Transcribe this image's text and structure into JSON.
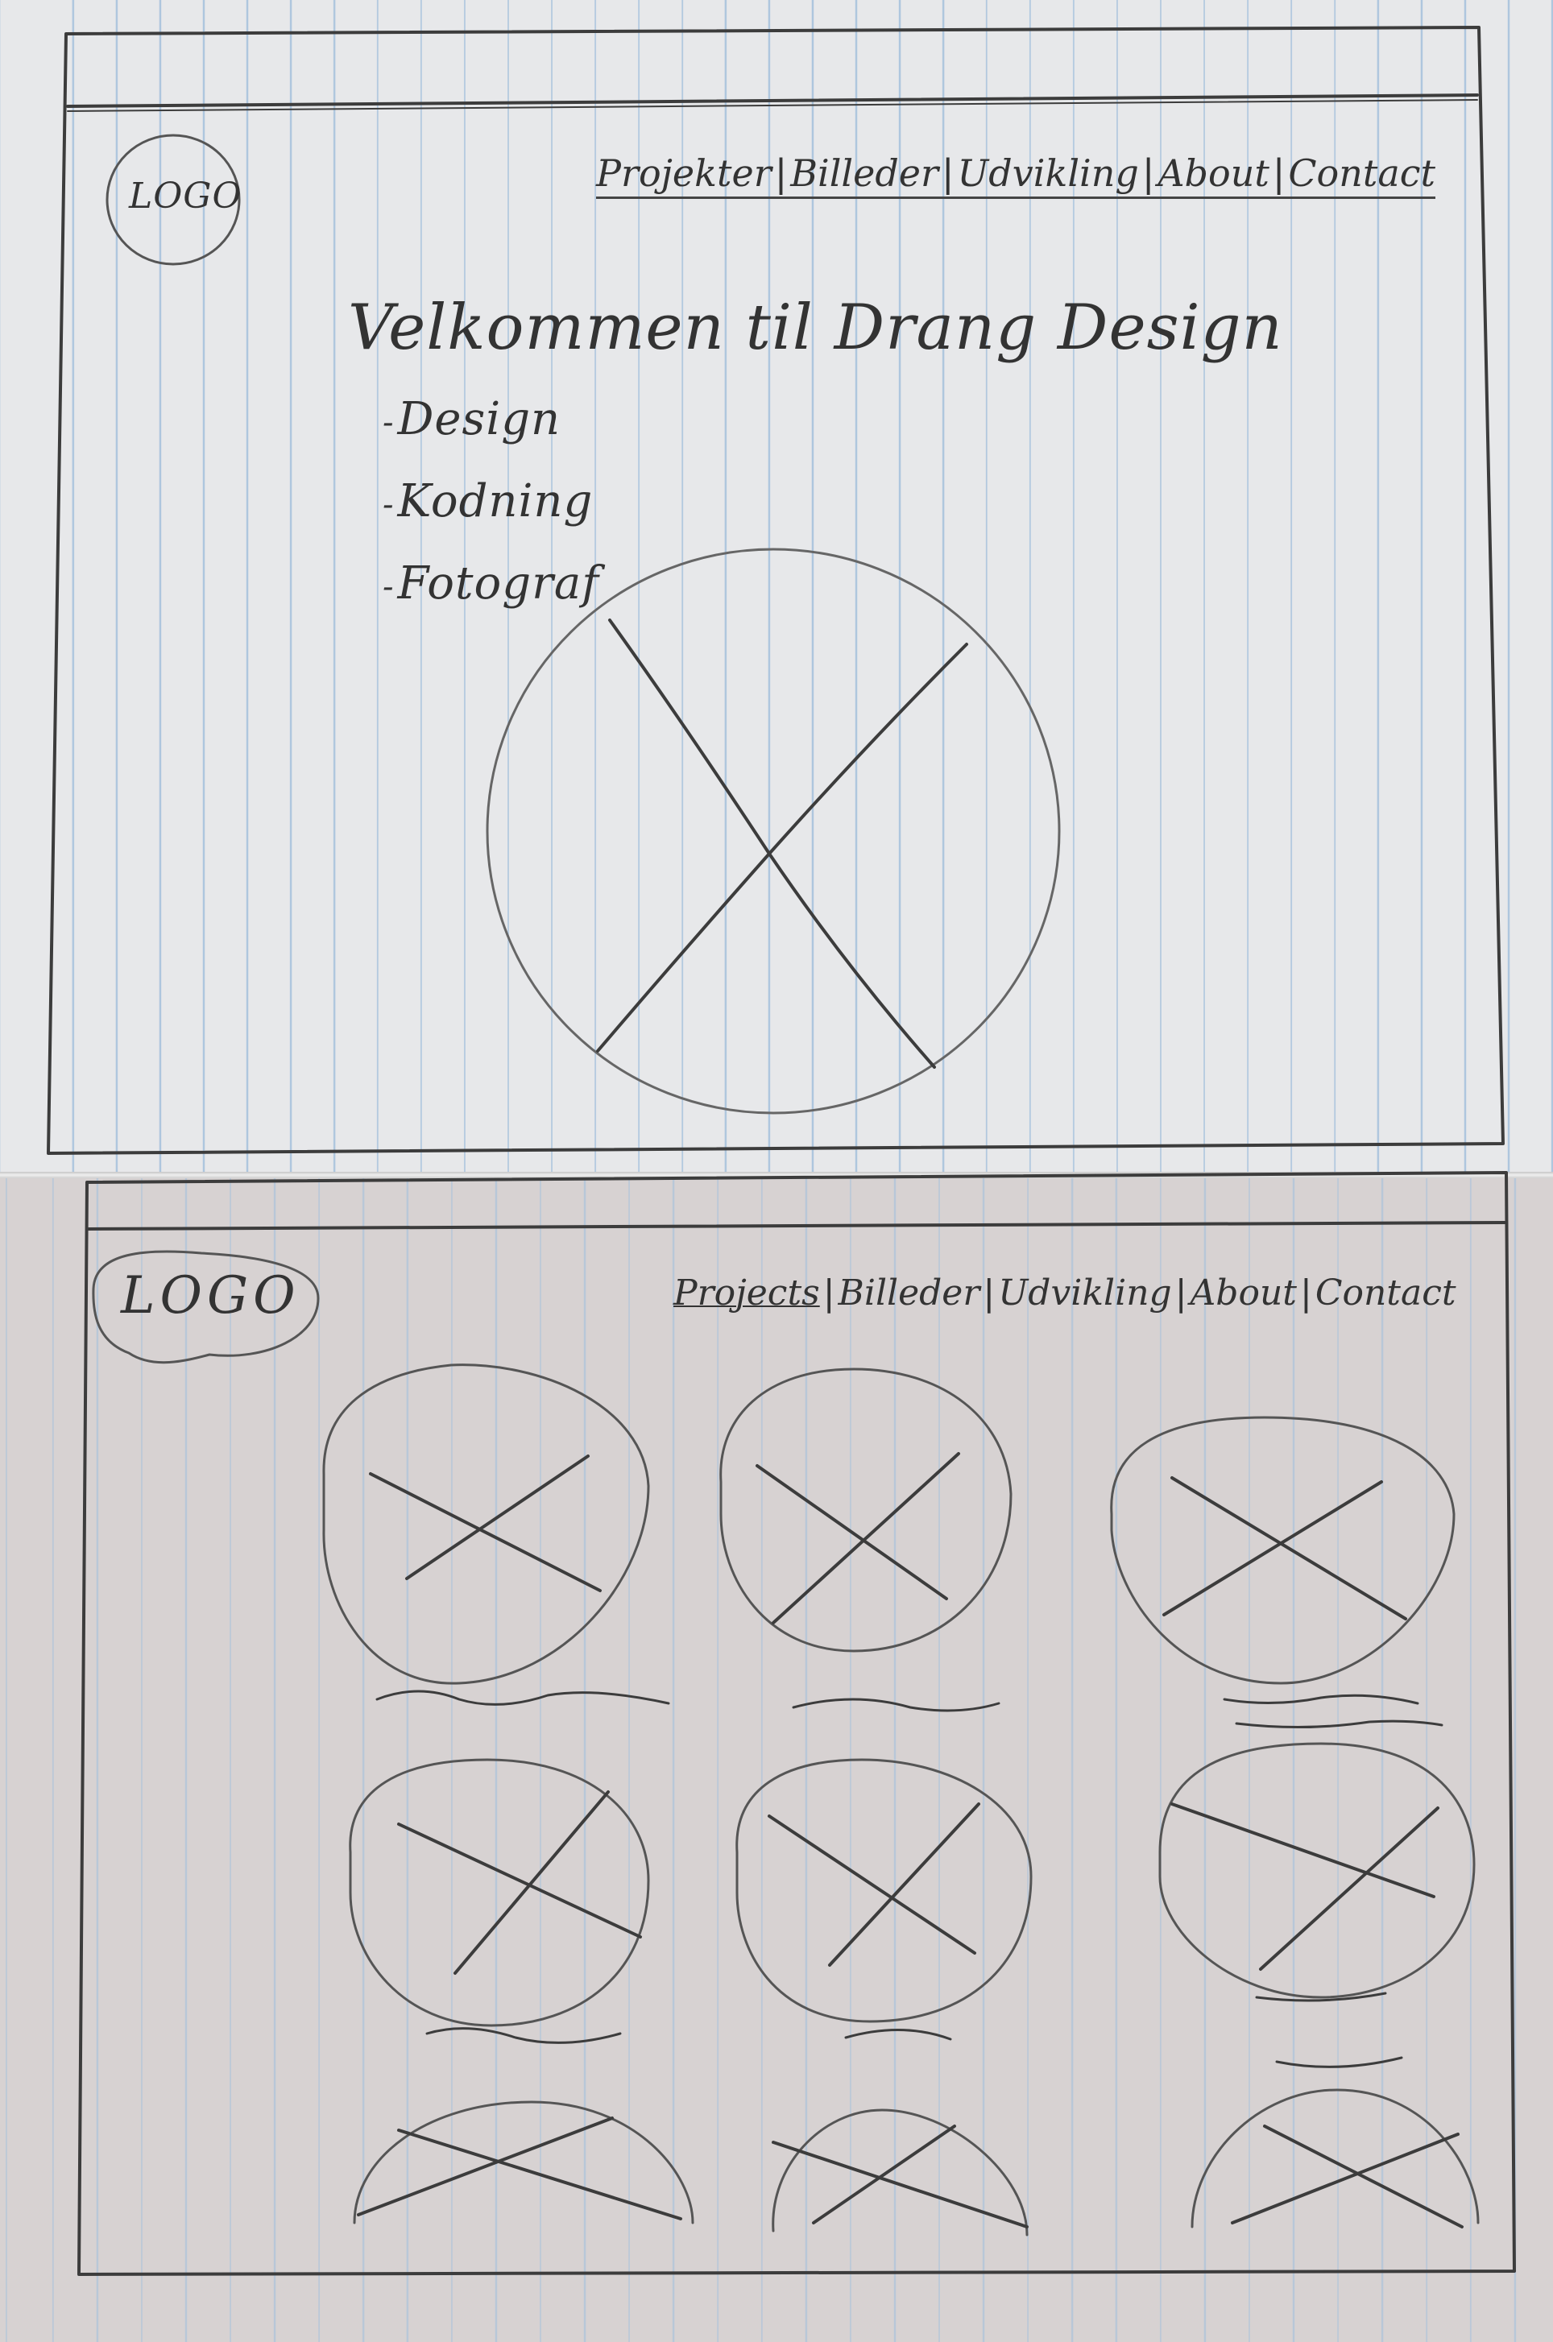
{
  "pages": [
    {
      "logo": "LOGO",
      "nav": [
        "Projekter",
        "Billeder",
        "Udvikling",
        "About",
        "Contact"
      ],
      "title": "Velkommen til Drang Design",
      "list": [
        "Design",
        "Kodning",
        "Fotograf"
      ]
    },
    {
      "logo": "LOGO",
      "nav": [
        "Projects",
        "Billeder",
        "Udvikling",
        "About",
        "Contact"
      ]
    }
  ],
  "colors": {
    "pencil": "#3a3a3a",
    "paper_top": "#e7e8ea",
    "paper_bottom": "#d7d2d2",
    "rule_lines": "#aec6de"
  }
}
